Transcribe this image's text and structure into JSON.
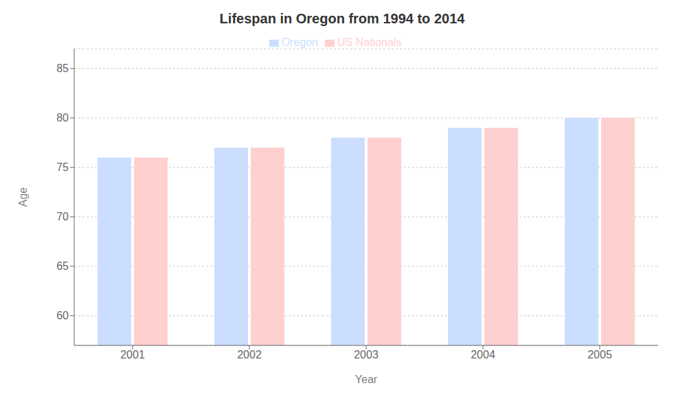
{
  "chart_data": {
    "type": "bar",
    "title": "Lifespan in Oregon from 1994 to 2014",
    "x_label": "Year",
    "y_label": "Age",
    "categories": [
      "2001",
      "2002",
      "2003",
      "2004",
      "2005"
    ],
    "series": [
      {
        "name": "Oregon",
        "color": "#ccdeff",
        "values": [
          76,
          77,
          78,
          79,
          80
        ]
      },
      {
        "name": "US Nationals",
        "color": "#ffd0d0",
        "values": [
          76,
          77,
          78,
          79,
          80
        ]
      }
    ],
    "ylim": [
      57,
      87
    ],
    "yticks": [
      60,
      65,
      70,
      75,
      80,
      85
    ],
    "grid": true,
    "legend": "top"
  }
}
